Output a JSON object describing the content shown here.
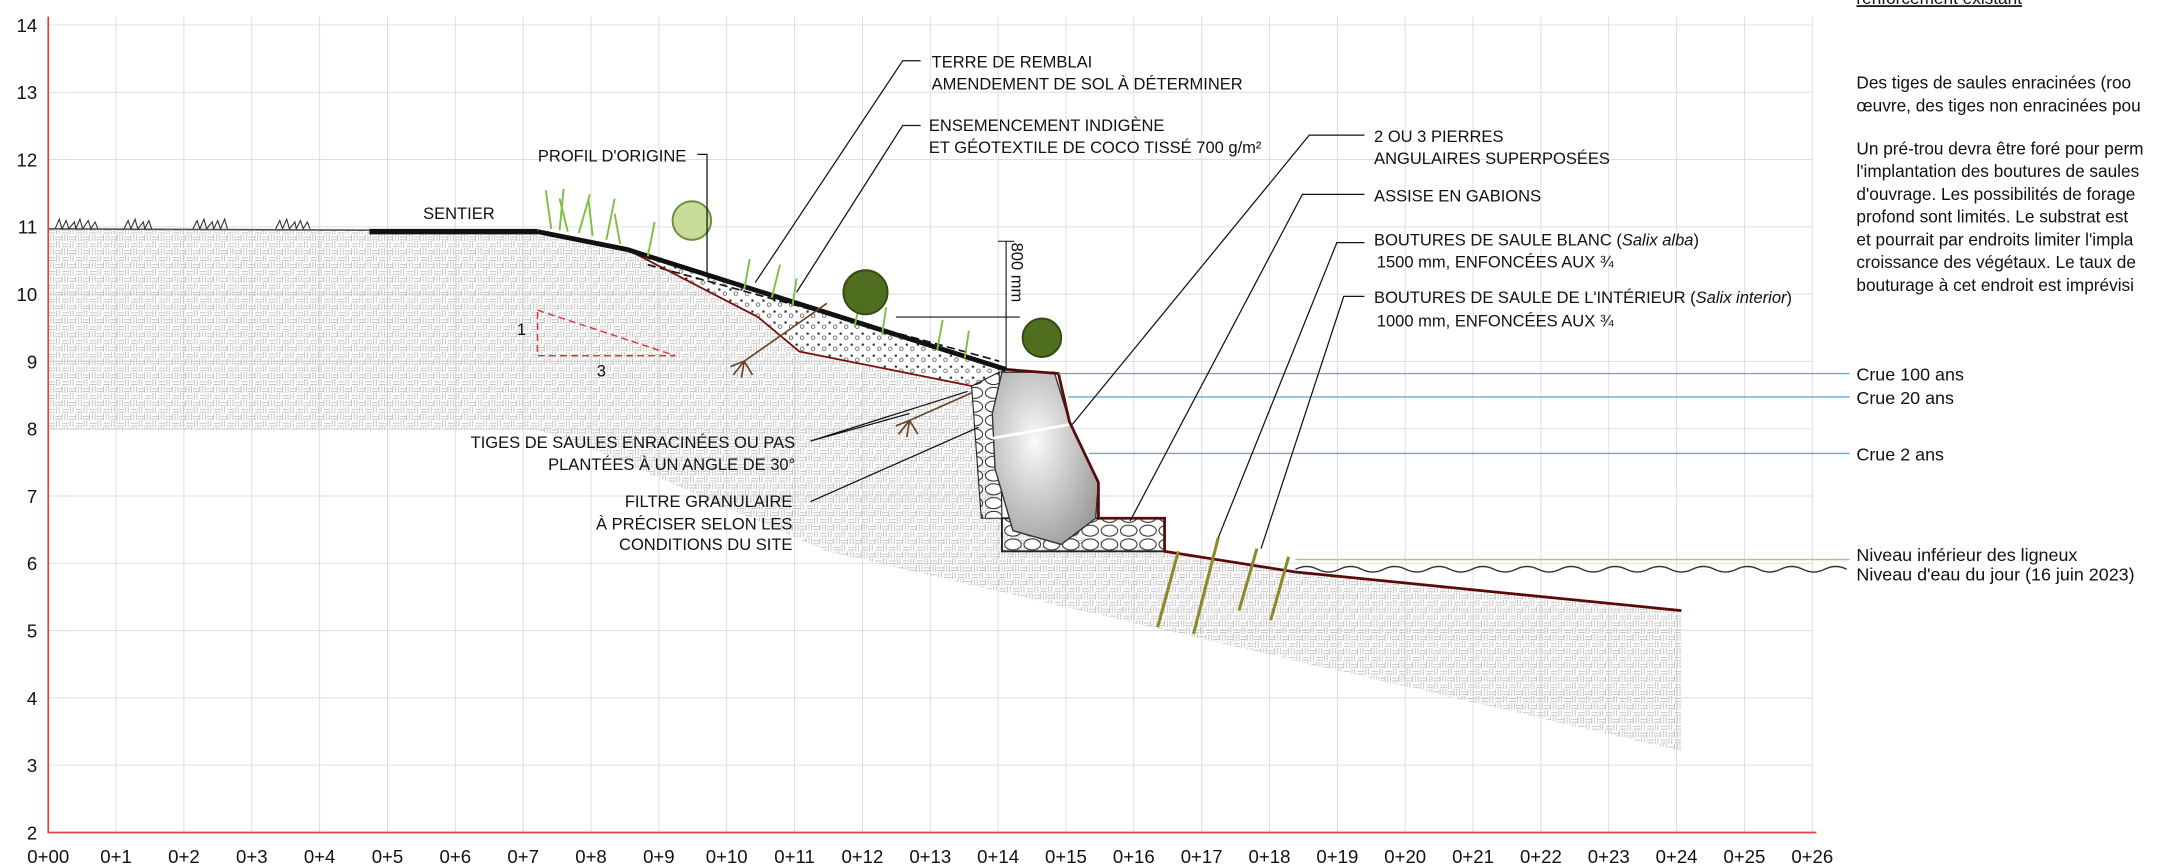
{
  "axes": {
    "y_ticks": [
      2,
      3,
      4,
      5,
      6,
      7,
      8,
      9,
      10,
      11,
      12,
      13,
      14
    ],
    "x_ticks": [
      "0+00",
      "0+1",
      "0+2",
      "0+3",
      "0+4",
      "0+5",
      "0+6",
      "0+7",
      "0+8",
      "0+9",
      "0+10",
      "0+11",
      "0+12",
      "0+13",
      "0+14",
      "0+15",
      "0+16",
      "0+17",
      "0+18",
      "0+19",
      "0+20",
      "0+21",
      "0+22",
      "0+23",
      "0+24",
      "0+25",
      "0+26"
    ]
  },
  "labels": {
    "fill": [
      "TERRE DE REMBLAI",
      "AMENDEMENT DE SOL À DÉTERMINER"
    ],
    "seeding": [
      "ENSEMENCEMENT INDIGÈNE",
      "ET GÉOTEXTILE DE COCO TISSÉ 700 g/m²"
    ],
    "original_profile": "PROFIL D'ORIGINE",
    "path": "SENTIER",
    "stones": [
      "2 OU 3 PIERRES",
      "ANGULAIRES SUPERPOSÉES"
    ],
    "gabions": "ASSISE EN GABIONS",
    "white_willow": {
      "prefix": "BOUTURES DE SAULE BLANC (",
      "species": "Salix alba",
      "suffix": ")",
      "detail": "1500 mm, ENFONCÉES AUX ¾"
    },
    "interior_willow": {
      "prefix": "BOUTURES DE SAULE DE L'INTÉRIEUR (",
      "species": "Salix interior",
      "suffix": ")",
      "detail": "1000 mm, ENFONCÉES AUX ¾"
    },
    "dimension": "800 mm",
    "slope_rise": "1",
    "slope_run": "3",
    "stems": [
      "TIGES DE SAULES ENRACINÉES OU PAS",
      "PLANTÉES À UN ANGLE DE 30°"
    ],
    "filter": [
      "FILTRE GRANULAIRE",
      "À PRÉCISER SELON LES",
      "CONDITIONS DU SITE"
    ]
  },
  "levels": {
    "flood_100": "Crue 100 ans",
    "flood_20": "Crue 20 ans",
    "flood_2": "Crue 2 ans",
    "woody_lower_limit": "Niveau inférieur des ligneux",
    "water_today": "Niveau d'eau du jour (16 juin 2023)"
  },
  "notes": {
    "heading": "renforcement existant",
    "paragraph_1": [
      "Des tiges de saules enracinées (roo",
      "œuvre, des tiges non enracinées pou"
    ],
    "paragraph_2": [
      "Un pré-trou devra être foré pour perm",
      "l'implantation des boutures de saules",
      "d'ouvrage. Les possibilités de forage",
      "profond sont limités. Le substrat est",
      "et pourrait par endroits limiter l'impla",
      "croissance des végétaux. Le taux de",
      "bouturage à cet endroit est imprévisi"
    ]
  }
}
